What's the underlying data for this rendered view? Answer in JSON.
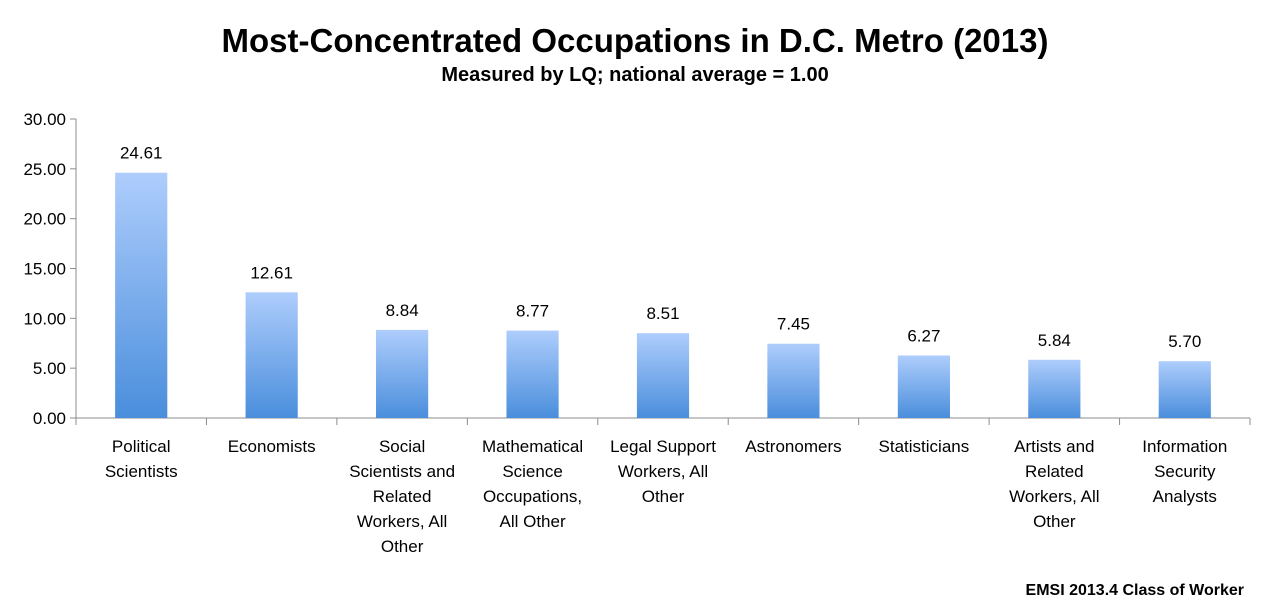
{
  "chart_data": {
    "type": "bar",
    "title": "Most-Concentrated Occupations in D.C. Metro (2013)",
    "subtitle": "Measured by LQ; national average = 1.00",
    "xlabel": "",
    "ylabel": "",
    "ylim": [
      0,
      30
    ],
    "yticks": [
      "0.00",
      "5.00",
      "10.00",
      "15.00",
      "20.00",
      "25.00",
      "30.00"
    ],
    "grid": false,
    "categories": [
      [
        "Political",
        "Scientists"
      ],
      [
        "Economists"
      ],
      [
        "Social",
        "Scientists and",
        "Related",
        "Workers, All",
        "Other"
      ],
      [
        "Mathematical",
        "Science",
        "Occupations,",
        "All Other"
      ],
      [
        "Legal Support",
        "Workers, All",
        "Other"
      ],
      [
        "Astronomers"
      ],
      [
        "Statisticians"
      ],
      [
        "Artists and",
        "Related",
        "Workers, All",
        "Other"
      ],
      [
        "Information",
        "Security",
        "Analysts"
      ]
    ],
    "values": [
      24.61,
      12.61,
      8.84,
      8.77,
      8.51,
      7.45,
      6.27,
      5.84,
      5.7
    ],
    "value_labels": [
      "24.61",
      "12.61",
      "8.84",
      "8.77",
      "8.51",
      "7.45",
      "6.27",
      "5.84",
      "5.70"
    ],
    "source": "EMSI 2013.4 Class of Worker",
    "colors": {
      "bar_top": "#aecdfc",
      "bar_bottom": "#4a8edc",
      "axis": "#8c8c8c"
    }
  }
}
